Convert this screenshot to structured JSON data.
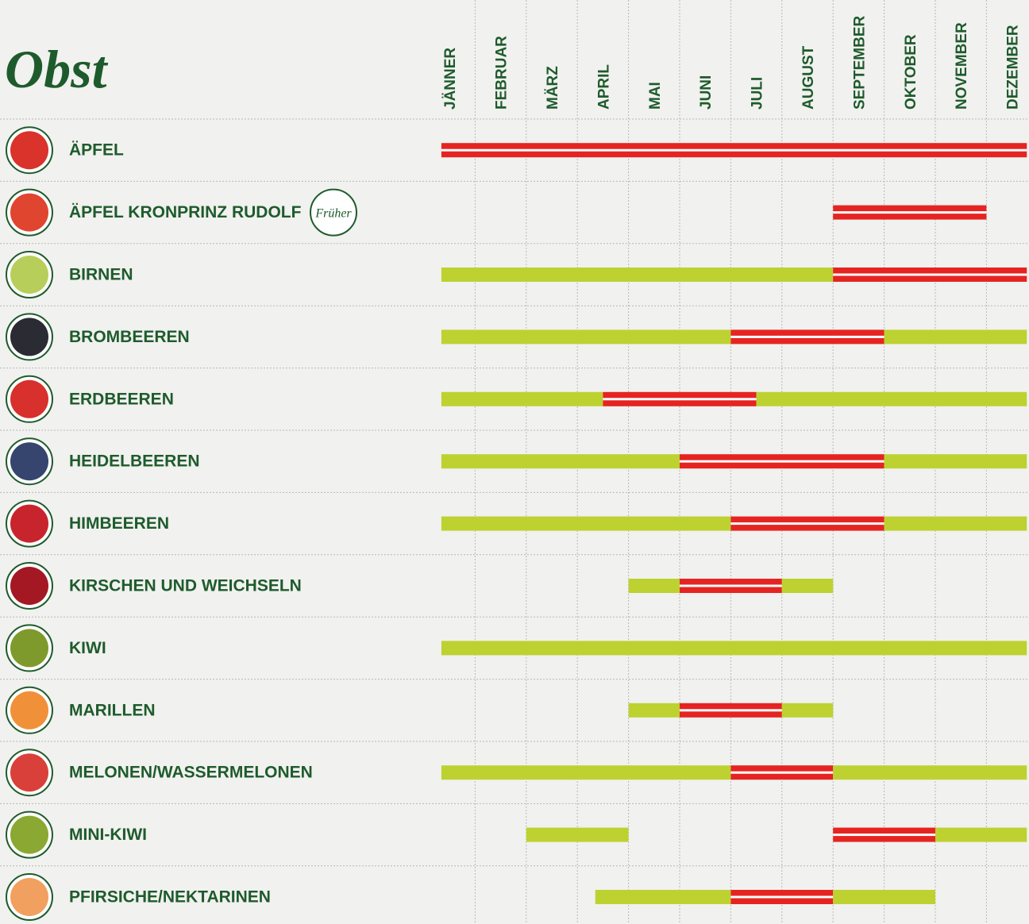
{
  "chart_data": {
    "type": "season-calendar",
    "title": "Obst",
    "badge": "Früher",
    "categories": [
      "JÄNNER",
      "FEBRUAR",
      "MÄRZ",
      "APRIL",
      "MAI",
      "JUNI",
      "JULI",
      "AUGUST",
      "SEPTEMBER",
      "OKTOBER",
      "NOVEMBER",
      "DEZEMBER"
    ],
    "xlim": [
      0,
      12
    ],
    "rows": [
      {
        "name": "ÄPFEL",
        "segments": [
          {
            "start": 0.34,
            "end": 11.79,
            "color": "#e52421"
          }
        ]
      },
      {
        "name": "ÄPFEL KRONPRINZ RUDOLF",
        "segments": [
          {
            "start": 8,
            "end": 11,
            "color": "#e52421"
          }
        ]
      },
      {
        "name": "BIRNEN",
        "segments": [
          {
            "start": 0.34,
            "end": 8,
            "color": "#bdd230"
          },
          {
            "start": 8,
            "end": 11.79,
            "color": "#e52421"
          }
        ]
      },
      {
        "name": "BROMBEEREN",
        "segments": [
          {
            "start": 0.34,
            "end": 6,
            "color": "#bdd230"
          },
          {
            "start": 6,
            "end": 9,
            "color": "#e52421"
          },
          {
            "start": 9,
            "end": 11.79,
            "color": "#bdd230"
          }
        ]
      },
      {
        "name": "ERDBEEREN",
        "segments": [
          {
            "start": 0.34,
            "end": 3.5,
            "color": "#bdd230"
          },
          {
            "start": 3.5,
            "end": 6.5,
            "color": "#e52421"
          },
          {
            "start": 6.5,
            "end": 11.79,
            "color": "#bdd230"
          }
        ]
      },
      {
        "name": "HEIDELBEEREN",
        "segments": [
          {
            "start": 0.34,
            "end": 5,
            "color": "#bdd230"
          },
          {
            "start": 5,
            "end": 9,
            "color": "#e52421"
          },
          {
            "start": 9,
            "end": 11.79,
            "color": "#bdd230"
          }
        ]
      },
      {
        "name": "HIMBEEREN",
        "segments": [
          {
            "start": 0.34,
            "end": 6,
            "color": "#bdd230"
          },
          {
            "start": 6,
            "end": 9,
            "color": "#e52421"
          },
          {
            "start": 9,
            "end": 11.79,
            "color": "#bdd230"
          }
        ]
      },
      {
        "name": "KIRSCHEN UND WEICHSELN",
        "segments": [
          {
            "start": 4,
            "end": 5,
            "color": "#bdd230"
          },
          {
            "start": 5,
            "end": 7,
            "color": "#e52421"
          },
          {
            "start": 7,
            "end": 8,
            "color": "#bdd230"
          }
        ]
      },
      {
        "name": "KIWI",
        "segments": [
          {
            "start": 0.34,
            "end": 11.79,
            "color": "#bdd230"
          }
        ]
      },
      {
        "name": "MARILLEN",
        "segments": [
          {
            "start": 4,
            "end": 5,
            "color": "#bdd230"
          },
          {
            "start": 5,
            "end": 7,
            "color": "#e52421"
          },
          {
            "start": 7,
            "end": 8,
            "color": "#bdd230"
          }
        ]
      },
      {
        "name": "MELONEN/WASSERMELONEN",
        "segments": [
          {
            "start": 0.34,
            "end": 6,
            "color": "#bdd230"
          },
          {
            "start": 6,
            "end": 8,
            "color": "#e52421"
          },
          {
            "start": 8,
            "end": 11.79,
            "color": "#bdd230"
          }
        ]
      },
      {
        "name": "MINI-KIWI",
        "segments": [
          {
            "start": 2,
            "end": 4,
            "color": "#bdd230"
          },
          {
            "start": 8,
            "end": 10,
            "color": "#e52421"
          },
          {
            "start": 10,
            "end": 11.79,
            "color": "#bdd230"
          }
        ]
      },
      {
        "name": "PFIRSICHE/NEKTARINEN",
        "segments": [
          {
            "start": 3.35,
            "end": 6,
            "color": "#bdd230"
          },
          {
            "start": 6,
            "end": 8,
            "color": "#e52421"
          },
          {
            "start": 8,
            "end": 10,
            "color": "#bdd230"
          }
        ]
      }
    ]
  }
}
